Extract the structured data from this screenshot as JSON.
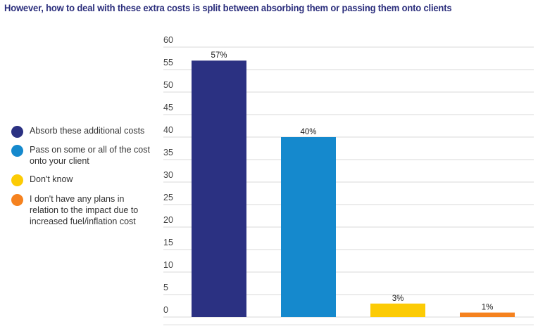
{
  "chart_data": {
    "type": "bar",
    "title": "However, how to deal with these extra costs is split between absorbing them or passing them onto clients",
    "xlabel": "",
    "ylabel": "",
    "ylim": [
      0,
      60
    ],
    "yticks": [
      0,
      5,
      10,
      15,
      20,
      25,
      30,
      35,
      40,
      45,
      50,
      55,
      60
    ],
    "grid": true,
    "legend_position": "left",
    "categories": [
      "Absorb these additional costs",
      "Pass on some or all of the cost onto your client",
      "Don't know",
      "I don't have any plans in relation to the impact due to increased fuel/inflation cost"
    ],
    "values": [
      57,
      40,
      3,
      1
    ],
    "data_labels": [
      "57%",
      "40%",
      "3%",
      "1%"
    ],
    "colors": [
      "#2b3182",
      "#1589cd",
      "#fccb05",
      "#f5821f"
    ]
  },
  "legend": [
    {
      "lines": [
        "Absorb these additional costs"
      ],
      "color": "#2b3182"
    },
    {
      "lines": [
        "Pass on some or all of the cost",
        "onto your client"
      ],
      "color": "#1589cd"
    },
    {
      "lines": [
        "Don't know"
      ],
      "color": "#fccb05"
    },
    {
      "lines": [
        "I don't have any plans in",
        "relation to the impact due to",
        "increased fuel/inflation cost"
      ],
      "color": "#f5821f"
    }
  ]
}
